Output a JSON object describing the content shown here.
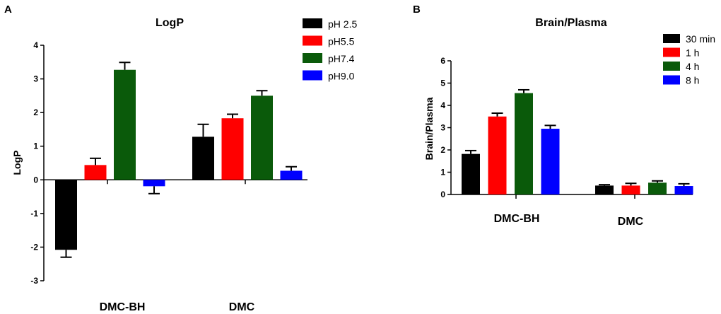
{
  "chart_data": [
    {
      "panel": "A",
      "type": "bar",
      "title": "LogP",
      "xlabel": "",
      "ylabel": "LogP",
      "ylim": [
        -3,
        4
      ],
      "yticks": [
        4,
        3,
        2,
        1,
        0,
        -1,
        -2,
        -3
      ],
      "ytick_labels": [
        "4",
        "3",
        "2",
        "1",
        "0",
        "-1",
        "-2",
        "-3"
      ],
      "categories": [
        "DMC-BH",
        "DMC"
      ],
      "legend_position": "top-right",
      "series": [
        {
          "name": "pH 2.5",
          "color": "#000000",
          "values": [
            -2.08,
            1.28
          ],
          "errors": [
            0.22,
            0.37
          ]
        },
        {
          "name": "pH5.5",
          "color": "#ff0000",
          "values": [
            0.44,
            1.83
          ],
          "errors": [
            0.2,
            0.12
          ]
        },
        {
          "name": "pH7.4",
          "color": "#0a5a0a",
          "values": [
            3.27,
            2.5
          ],
          "errors": [
            0.22,
            0.15
          ]
        },
        {
          "name": "pH9.0",
          "color": "#0000ff",
          "values": [
            -0.19,
            0.27
          ],
          "errors": [
            0.22,
            0.12
          ]
        }
      ]
    },
    {
      "panel": "B",
      "type": "bar",
      "title": "Brain/Plasma",
      "xlabel": "",
      "ylabel": "Brain/Plasma",
      "ylim": [
        0,
        6
      ],
      "yticks": [
        0,
        1,
        2,
        3,
        4,
        5,
        6
      ],
      "ytick_labels": [
        "0",
        "1",
        "2",
        "3",
        "4",
        "5",
        "6"
      ],
      "categories": [
        "DMC-BH",
        "DMC"
      ],
      "legend_position": "top-right",
      "series": [
        {
          "name": "30 min",
          "color": "#000000",
          "values": [
            1.82,
            0.4
          ],
          "errors": [
            0.15,
            0.04
          ]
        },
        {
          "name": "1 h",
          "color": "#ff0000",
          "values": [
            3.5,
            0.4
          ],
          "errors": [
            0.15,
            0.1
          ]
        },
        {
          "name": "4 h",
          "color": "#0a5a0a",
          "values": [
            4.55,
            0.53
          ],
          "errors": [
            0.15,
            0.08
          ]
        },
        {
          "name": "8 h",
          "color": "#0000ff",
          "values": [
            2.95,
            0.38
          ],
          "errors": [
            0.15,
            0.1
          ]
        }
      ]
    }
  ]
}
